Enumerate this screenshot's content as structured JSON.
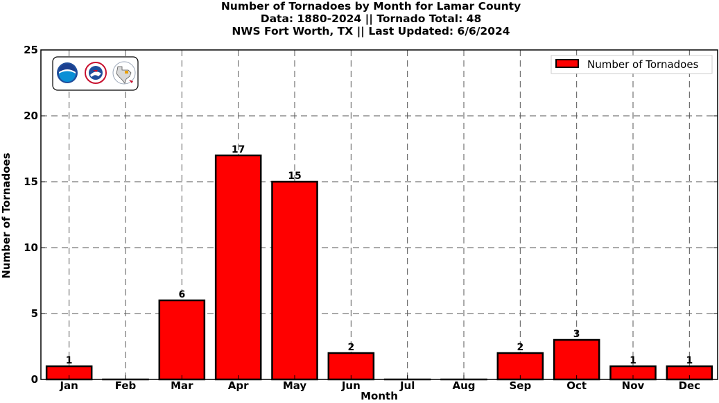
{
  "chart_data": {
    "type": "bar",
    "title_lines": [
      "Number of Tornadoes by Month for Lamar County",
      "Data: 1880-2024 || Tornado Total: 48",
      "NWS Fort Worth, TX || Last Updated: 6/6/2024"
    ],
    "xlabel": "Month",
    "ylabel": "Number of Tornadoes",
    "categories": [
      "Jan",
      "Feb",
      "Mar",
      "Apr",
      "May",
      "Jun",
      "Jul",
      "Aug",
      "Sep",
      "Oct",
      "Nov",
      "Dec"
    ],
    "series": [
      {
        "name": "Number of Tornadoes",
        "values": [
          1,
          0,
          6,
          17,
          15,
          2,
          0,
          0,
          2,
          3,
          1,
          1
        ],
        "color": "#ff0000"
      }
    ],
    "data_labels": [
      "1",
      "",
      "6",
      "17",
      "15",
      "2",
      "",
      "",
      "2",
      "3",
      "1",
      "1"
    ],
    "ylim": [
      0,
      25
    ],
    "yticks": [
      0,
      5,
      10,
      15,
      20,
      25
    ],
    "grid": true,
    "grid_style": "dashed",
    "legend_position": "top-right",
    "logos": [
      "noaa-logo-icon",
      "nws-logo-icon",
      "texas-map-logo-icon"
    ]
  }
}
